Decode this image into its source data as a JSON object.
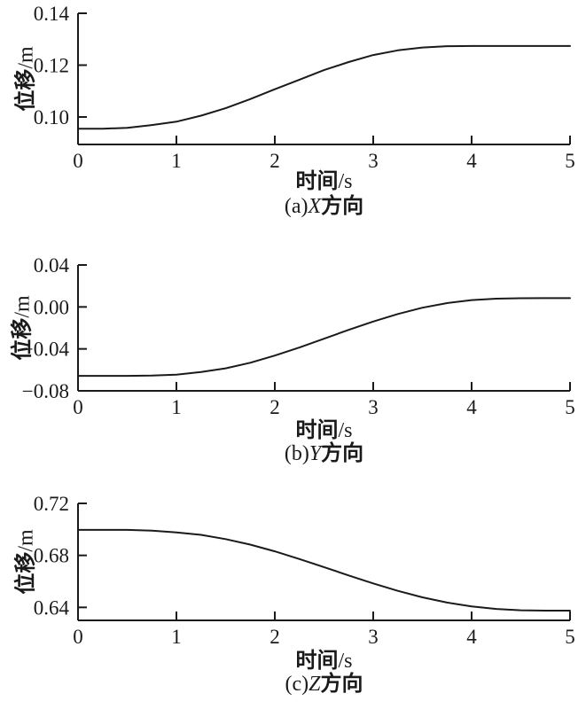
{
  "figure": {
    "background_color": "#ffffff",
    "axis_color": "#1a1a1a",
    "curve_color": "#1a1a1a",
    "grid": false,
    "legend": null
  },
  "chart_data": [
    {
      "type": "line",
      "id": "a",
      "caption": {
        "prefix": "(a)",
        "axis_letter": "X",
        "suffix": "方向",
        "full": "(a)X方向"
      },
      "xlabel": {
        "cjk": "时间",
        "unit": "/s",
        "full": "时间/s"
      },
      "ylabel": {
        "cjk": "位移",
        "unit": "/m",
        "full": "位移/m"
      },
      "xlim": [
        0,
        5
      ],
      "ylim": [
        0.0894,
        0.14
      ],
      "x_ticks": [
        0,
        1,
        2,
        3,
        4,
        5
      ],
      "x_tick_labels": [
        "0",
        "1",
        "2",
        "3",
        "4",
        "5"
      ],
      "y_ticks": [
        0.1,
        0.12,
        0.14
      ],
      "y_tick_labels": [
        "0.10",
        "0.12",
        "0.14"
      ],
      "x": [
        0,
        0.25,
        0.5,
        0.75,
        1,
        1.25,
        1.5,
        1.75,
        2,
        2.25,
        2.5,
        2.75,
        3,
        3.25,
        3.5,
        3.75,
        4,
        4.25,
        4.5,
        4.75,
        5
      ],
      "y": [
        0.0955,
        0.0955,
        0.0958,
        0.0969,
        0.0982,
        0.1005,
        0.1034,
        0.1069,
        0.1107,
        0.1144,
        0.1181,
        0.1212,
        0.1239,
        0.1257,
        0.1268,
        0.1273,
        0.1274,
        0.1274,
        0.1274,
        0.1274,
        0.1274
      ]
    },
    {
      "type": "line",
      "id": "b",
      "caption": {
        "prefix": "(b)",
        "axis_letter": "Y",
        "suffix": "方向",
        "full": "(b)Y方向"
      },
      "xlabel": {
        "cjk": "时间",
        "unit": "/s",
        "full": "时间/s"
      },
      "ylabel": {
        "cjk": "位移",
        "unit": "/m",
        "full": "位移/m"
      },
      "xlim": [
        0,
        5
      ],
      "ylim": [
        -0.08,
        0.04
      ],
      "x_ticks": [
        0,
        1,
        2,
        3,
        4,
        5
      ],
      "x_tick_labels": [
        "0",
        "1",
        "2",
        "3",
        "4",
        "5"
      ],
      "y_ticks": [
        -0.08,
        -0.04,
        0.0,
        0.04
      ],
      "y_tick_labels": [
        "−0.08",
        "−0.04",
        "0.00",
        "0.04"
      ],
      "x": [
        0,
        0.25,
        0.5,
        0.75,
        1,
        1.25,
        1.5,
        1.75,
        2,
        2.25,
        2.5,
        2.75,
        3,
        3.25,
        3.5,
        3.75,
        4,
        4.25,
        4.5,
        4.75,
        5
      ],
      "y": [
        -0.0657,
        -0.0657,
        -0.0657,
        -0.0655,
        -0.0645,
        -0.0621,
        -0.0585,
        -0.0532,
        -0.0464,
        -0.0387,
        -0.0303,
        -0.0219,
        -0.0139,
        -0.0067,
        -0.0007,
        0.0037,
        0.0065,
        0.0079,
        0.0083,
        0.0084,
        0.0084
      ]
    },
    {
      "type": "line",
      "id": "c",
      "caption": {
        "prefix": "(c)",
        "axis_letter": "Z",
        "suffix": "方向",
        "full": "(c)Z方向"
      },
      "xlabel": {
        "cjk": "时间",
        "unit": "/s",
        "full": "时间/s"
      },
      "ylabel": {
        "cjk": "位移",
        "unit": "/m",
        "full": "位移/m"
      },
      "xlim": [
        0,
        5
      ],
      "ylim": [
        0.63,
        0.72
      ],
      "x_ticks": [
        0,
        1,
        2,
        3,
        4,
        5
      ],
      "x_tick_labels": [
        "0",
        "1",
        "2",
        "3",
        "4",
        "5"
      ],
      "y_ticks": [
        0.64,
        0.68,
        0.72
      ],
      "y_tick_labels": [
        "0.64",
        "0.68",
        "0.72"
      ],
      "x": [
        0,
        0.25,
        0.5,
        0.75,
        1,
        1.25,
        1.5,
        1.75,
        2,
        2.25,
        2.5,
        2.75,
        3,
        3.25,
        3.5,
        3.75,
        4,
        4.25,
        4.5,
        4.75,
        5
      ],
      "y": [
        0.6996,
        0.6996,
        0.6996,
        0.6991,
        0.6977,
        0.6958,
        0.6925,
        0.6883,
        0.6831,
        0.6772,
        0.671,
        0.6646,
        0.6584,
        0.6527,
        0.6477,
        0.6437,
        0.6407,
        0.6388,
        0.6378,
        0.6375,
        0.6375
      ]
    }
  ]
}
